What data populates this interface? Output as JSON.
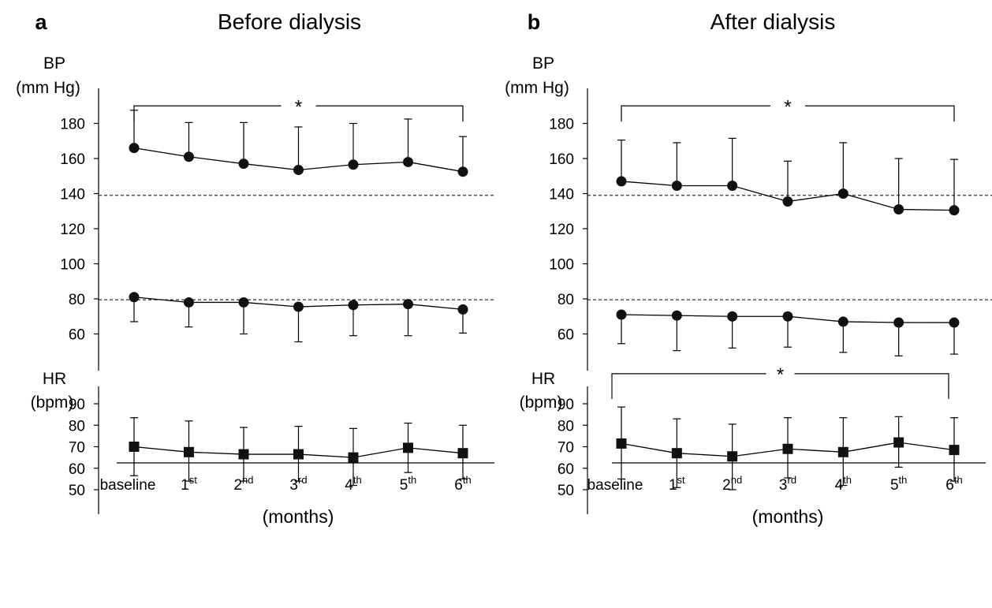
{
  "chart_data": [
    {
      "type": "line",
      "panel_letter": "a",
      "title": "Before dialysis",
      "categories": [
        "baseline",
        "1st",
        "2nd",
        "3rd",
        "4th",
        "5th",
        "6th"
      ],
      "category_labels": [
        {
          "base": "baseline",
          "sup": ""
        },
        {
          "base": "1",
          "sup": "st"
        },
        {
          "base": "2",
          "sup": "nd"
        },
        {
          "base": "3",
          "sup": "rd"
        },
        {
          "base": "4",
          "sup": "th"
        },
        {
          "base": "5",
          "sup": "th"
        },
        {
          "base": "6",
          "sup": "th"
        }
      ],
      "xlabel": "(months)",
      "bp": {
        "ylabel_line1": "BP",
        "ylabel_line2": "(mm Hg)",
        "ylim": [
          40,
          194
        ],
        "yticks": [
          60,
          80,
          100,
          120,
          140,
          160,
          180
        ],
        "reference_lines": [
          139,
          79.5
        ],
        "series": [
          {
            "marker": "circle",
            "values": [
              166,
              161,
              157,
              153.5,
              156.5,
              158,
              152.5
            ],
            "err_up": [
              21.5,
              19.5,
              23.5,
              24.5,
              23.5,
              24.5,
              20
            ]
          },
          {
            "marker": "circle",
            "values": [
              81,
              78,
              78,
              75.5,
              76.5,
              77,
              74
            ],
            "err_down": [
              14,
              14,
              18,
              20,
              17.5,
              18,
              13.5
            ]
          }
        ],
        "significance": {
          "from": 0,
          "to": 6,
          "label": "*",
          "y": 190
        }
      },
      "hr": {
        "ylabel_line1": "HR",
        "ylabel_line2": "(bpm)",
        "ylim": [
          38,
          96
        ],
        "yticks": [
          50,
          60,
          70,
          80,
          90
        ],
        "series": [
          {
            "marker": "square",
            "values": [
              70,
              67.5,
              66.5,
              66.5,
              65,
              69.5,
              67
            ],
            "err_up": [
              13.5,
              14.5,
              12.5,
              13,
              13.5,
              11.5,
              13
            ],
            "err_down": [
              13.5,
              13.5,
              12.5,
              12.5,
              13,
              11.5,
              12
            ]
          }
        ]
      }
    },
    {
      "type": "line",
      "panel_letter": "b",
      "title": "After dialysis",
      "categories": [
        "baseline",
        "1st",
        "2nd",
        "3rd",
        "4th",
        "5th",
        "6th"
      ],
      "category_labels": [
        {
          "base": "baseline",
          "sup": ""
        },
        {
          "base": "1",
          "sup": "st"
        },
        {
          "base": "2",
          "sup": "nd"
        },
        {
          "base": "3",
          "sup": "rd"
        },
        {
          "base": "4",
          "sup": "th"
        },
        {
          "base": "5",
          "sup": "th"
        },
        {
          "base": "6",
          "sup": "th"
        }
      ],
      "xlabel": "(months)",
      "bp": {
        "ylabel_line1": "BP",
        "ylabel_line2": "(mm Hg)",
        "ylim": [
          40,
          194
        ],
        "yticks": [
          60,
          80,
          100,
          120,
          140,
          160,
          180
        ],
        "reference_lines": [
          139,
          79.5
        ],
        "series": [
          {
            "marker": "circle",
            "values": [
              147,
              144.5,
              144.5,
              135.5,
              140,
              131,
              130.5
            ],
            "err_up": [
              23.5,
              24.5,
              27,
              23,
              29,
              29,
              29
            ]
          },
          {
            "marker": "circle",
            "values": [
              71,
              70.5,
              70,
              70,
              67,
              66.5,
              66.5
            ],
            "err_down": [
              16.5,
              20,
              18,
              17.5,
              17.5,
              19,
              18
            ]
          }
        ],
        "significance": {
          "from": 0,
          "to": 6,
          "label": "*",
          "y": 190
        }
      },
      "hr": {
        "ylabel_line1": "HR",
        "ylabel_line2": "(bpm)",
        "ylim": [
          38,
          96
        ],
        "yticks": [
          50,
          60,
          70,
          80,
          90
        ],
        "series": [
          {
            "marker": "square",
            "values": [
              71.5,
              67,
              65.5,
              69,
              67.5,
              72,
              68.5
            ],
            "err_up": [
              17,
              16,
              15,
              14.5,
              16,
              12,
              15
            ],
            "err_down": [
              16.5,
              16,
              15.5,
              13.5,
              15.5,
              11.5,
              14.5
            ]
          }
        ],
        "significance": {
          "from": 0,
          "to": 6,
          "label": "*",
          "y": 104
        }
      }
    }
  ]
}
